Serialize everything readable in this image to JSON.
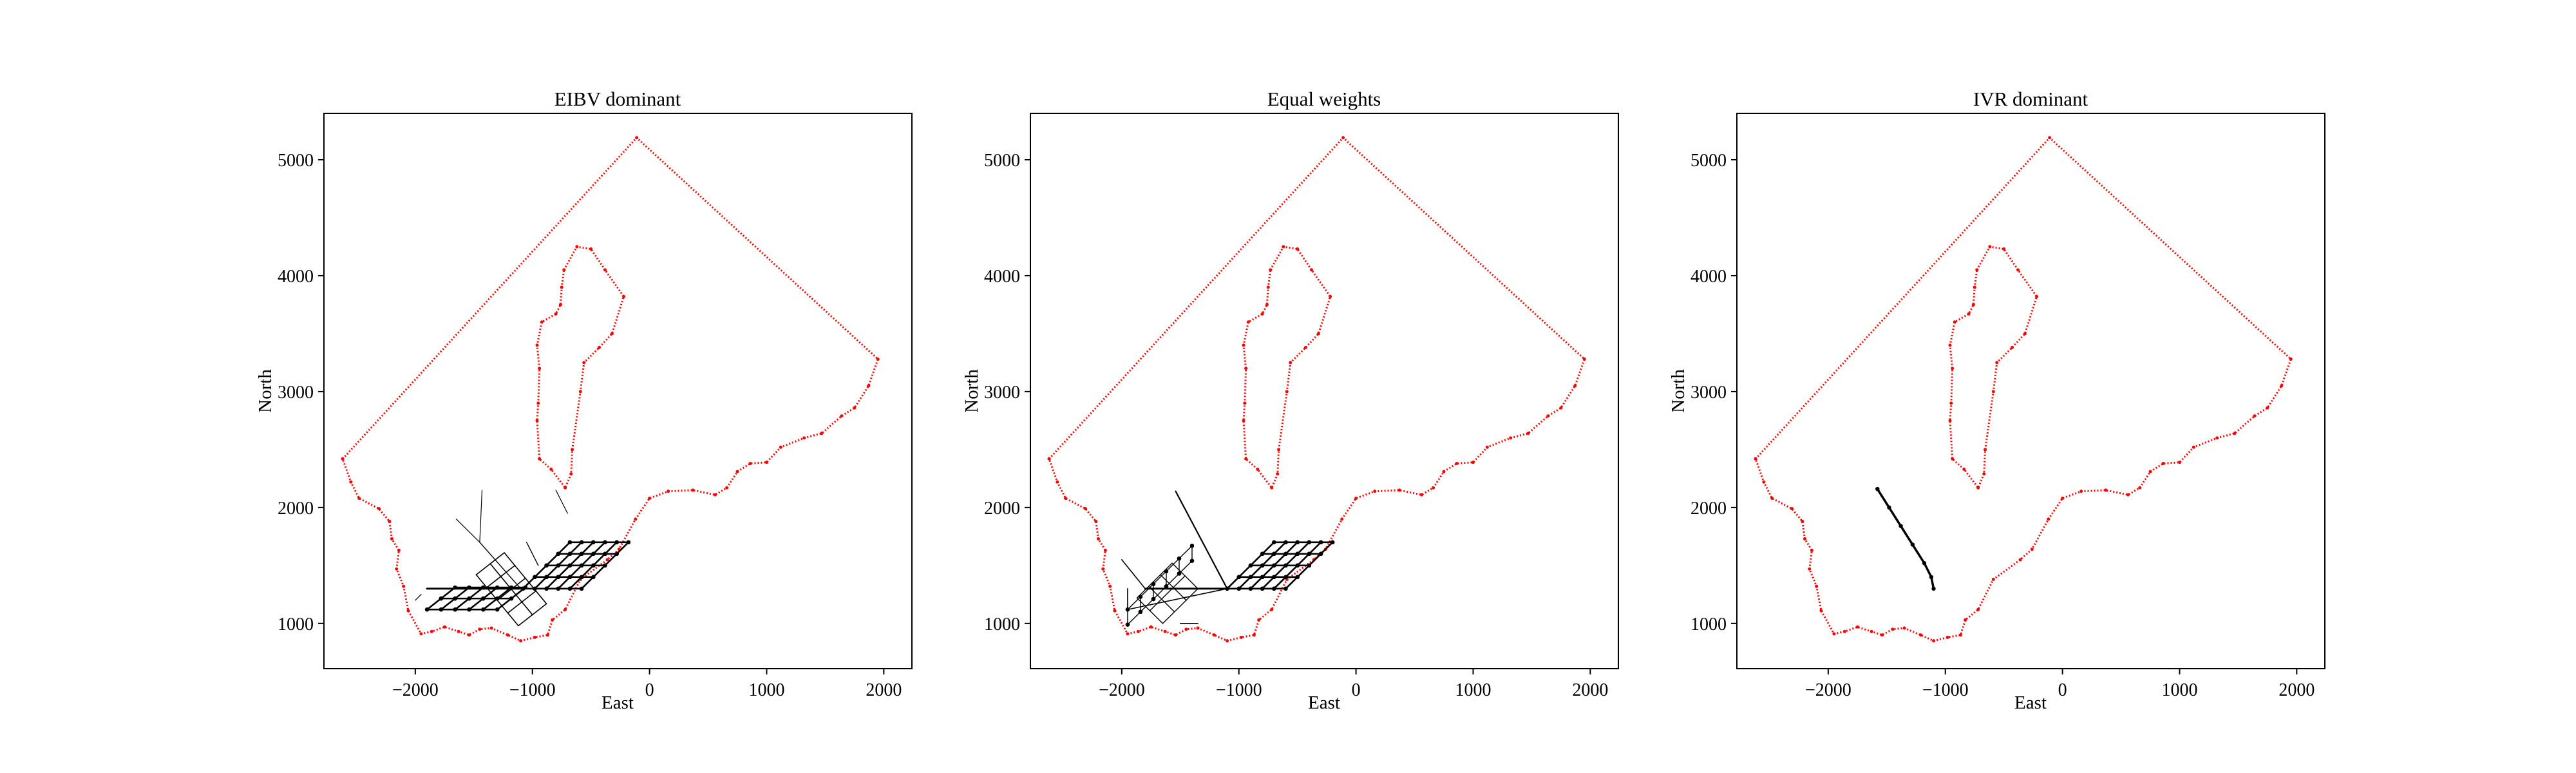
{
  "figure": {
    "background": "#ffffff"
  },
  "colors": {
    "boundary": "#ff0000",
    "path": "#000000",
    "axes": "#000000"
  },
  "chart_data": [
    {
      "type": "scatter",
      "title": "EIBV dominant",
      "xlabel": "East",
      "ylabel": "North",
      "xlim": [
        -2780,
        2240
      ],
      "ylim": [
        610,
        5400
      ],
      "xticks": [
        -2000,
        -1000,
        0,
        1000,
        2000
      ],
      "xtick_labels": [
        "−2000",
        "−1000",
        "0",
        "1000",
        "2000"
      ],
      "yticks": [
        1000,
        2000,
        3000,
        4000,
        5000
      ],
      "ytick_labels": [
        "1000",
        "2000",
        "3000",
        "4000",
        "5000"
      ],
      "grid": false
    },
    {
      "type": "scatter",
      "title": "Equal weights",
      "xlabel": "East",
      "ylabel": "North",
      "xlim": [
        -2780,
        2240
      ],
      "ylim": [
        610,
        5400
      ],
      "xticks": [
        -2000,
        -1000,
        0,
        1000,
        2000
      ],
      "xtick_labels": [
        "−2000",
        "−1000",
        "0",
        "1000",
        "2000"
      ],
      "yticks": [
        1000,
        2000,
        3000,
        4000,
        5000
      ],
      "ytick_labels": [
        "1000",
        "2000",
        "3000",
        "4000",
        "5000"
      ],
      "grid": false
    },
    {
      "type": "scatter",
      "title": "IVR dominant",
      "xlabel": "East",
      "ylabel": "North",
      "xlim": [
        -2780,
        2240
      ],
      "ylim": [
        610,
        5400
      ],
      "xticks": [
        -2000,
        -1000,
        0,
        1000,
        2000
      ],
      "xtick_labels": [
        "−2000",
        "−1000",
        "0",
        "1000",
        "2000"
      ],
      "yticks": [
        1000,
        2000,
        3000,
        4000,
        5000
      ],
      "ytick_labels": [
        "1000",
        "2000",
        "3000",
        "4000",
        "5000"
      ],
      "grid": false,
      "path": [
        [
          -1580,
          2160
        ],
        [
          -1480,
          2000
        ],
        [
          -1380,
          1840
        ],
        [
          -1280,
          1680
        ],
        [
          -1180,
          1520
        ],
        [
          -1120,
          1400
        ],
        [
          -1100,
          1300
        ]
      ]
    }
  ],
  "shared": {
    "outer_boundary": [
      [
        -2620,
        2420
      ],
      [
        -110,
        5190
      ],
      [
        1950,
        3280
      ],
      [
        1870,
        3050
      ],
      [
        1750,
        2860
      ],
      [
        1640,
        2790
      ],
      [
        1470,
        2640
      ],
      [
        1320,
        2600
      ],
      [
        1120,
        2520
      ],
      [
        1000,
        2390
      ],
      [
        860,
        2380
      ],
      [
        750,
        2310
      ],
      [
        660,
        2170
      ],
      [
        560,
        2110
      ],
      [
        370,
        2150
      ],
      [
        160,
        2140
      ],
      [
        0,
        2080
      ],
      [
        -120,
        1900
      ],
      [
        -260,
        1640
      ],
      [
        -360,
        1550
      ],
      [
        -590,
        1380
      ],
      [
        -720,
        1120
      ],
      [
        -830,
        1030
      ],
      [
        -870,
        900
      ],
      [
        -980,
        880
      ],
      [
        -1100,
        850
      ],
      [
        -1210,
        900
      ],
      [
        -1350,
        960
      ],
      [
        -1450,
        950
      ],
      [
        -1540,
        900
      ],
      [
        -1630,
        930
      ],
      [
        -1750,
        970
      ],
      [
        -1860,
        930
      ],
      [
        -1950,
        910
      ],
      [
        -2060,
        1110
      ],
      [
        -2100,
        1320
      ],
      [
        -2160,
        1470
      ],
      [
        -2140,
        1630
      ],
      [
        -2200,
        1730
      ],
      [
        -2220,
        1880
      ],
      [
        -2310,
        1990
      ],
      [
        -2480,
        2080
      ],
      [
        -2550,
        2220
      ],
      [
        -2620,
        2420
      ]
    ],
    "inner_boundary": [
      [
        -730,
        4050
      ],
      [
        -620,
        4250
      ],
      [
        -500,
        4230
      ],
      [
        -380,
        4050
      ],
      [
        -220,
        3820
      ],
      [
        -320,
        3500
      ],
      [
        -430,
        3380
      ],
      [
        -560,
        3250
      ],
      [
        -590,
        3000
      ],
      [
        -660,
        2500
      ],
      [
        -670,
        2290
      ],
      [
        -720,
        2170
      ],
      [
        -840,
        2330
      ],
      [
        -940,
        2420
      ],
      [
        -960,
        2750
      ],
      [
        -950,
        2900
      ],
      [
        -940,
        3200
      ],
      [
        -960,
        3400
      ],
      [
        -920,
        3600
      ],
      [
        -800,
        3670
      ],
      [
        -760,
        3750
      ],
      [
        -750,
        3900
      ],
      [
        -730,
        4050
      ]
    ]
  }
}
